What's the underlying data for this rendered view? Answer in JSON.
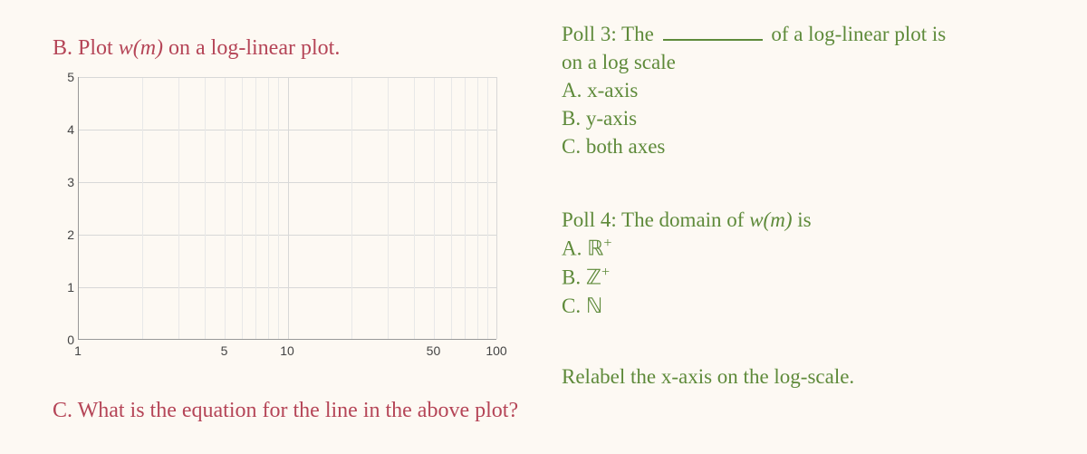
{
  "left": {
    "titleB_prefix": "B. ",
    "titleB_text1": "Plot ",
    "titleB_wm": "w(m)",
    "titleB_text2": " on a log-linear plot.",
    "chart": {
      "type": "log-linear-grid",
      "background": "#fdf9f3",
      "grid_color": "#d8d8d8",
      "axis_color": "#999999",
      "ylim": [
        0,
        5
      ],
      "yticks": [
        "0",
        "1",
        "2",
        "3",
        "4",
        "5"
      ],
      "xscale": "log",
      "xlim": [
        1,
        100
      ],
      "xticks": [
        {
          "pos_log10": 0.0,
          "label": "1"
        },
        {
          "pos_log10": 0.699,
          "label": "5"
        },
        {
          "pos_log10": 1.0,
          "label": "10"
        },
        {
          "pos_log10": 1.699,
          "label": "50"
        },
        {
          "pos_log10": 2.0,
          "label": "100"
        }
      ],
      "x_minor_log10": [
        0.301,
        0.477,
        0.602,
        0.699,
        0.778,
        0.845,
        0.903,
        0.954,
        1.301,
        1.477,
        1.602,
        1.699,
        1.778,
        1.845,
        1.903,
        1.954
      ],
      "tick_fontsize": 14,
      "tick_color": "#444444"
    },
    "titleC_prefix": "C. ",
    "titleC_text": "What is the equation for the line in the above plot?"
  },
  "right": {
    "poll3": {
      "line1a": "Poll 3:  The ",
      "line1b": " of a log-linear plot is",
      "line2": "on a log scale",
      "optA": "A. x-axis",
      "optB": "B. y-axis",
      "optC": "C. both axes"
    },
    "poll4": {
      "line1a": "Poll 4:  The domain of ",
      "wm": "w(m)",
      "line1b": " is",
      "optA_pre": "A. ",
      "optA_sym": "ℝ",
      "optA_sup": "+",
      "optB_pre": "B. ",
      "optB_sym": "ℤ",
      "optB_sup": "+",
      "optC_pre": "C. ",
      "optC_sym": "ℕ"
    },
    "relabel": "Relabel the x-axis on the log-scale."
  },
  "colors": {
    "heading": "#b54557",
    "poll": "#5e8a3a",
    "bg": "#fdf9f3"
  }
}
